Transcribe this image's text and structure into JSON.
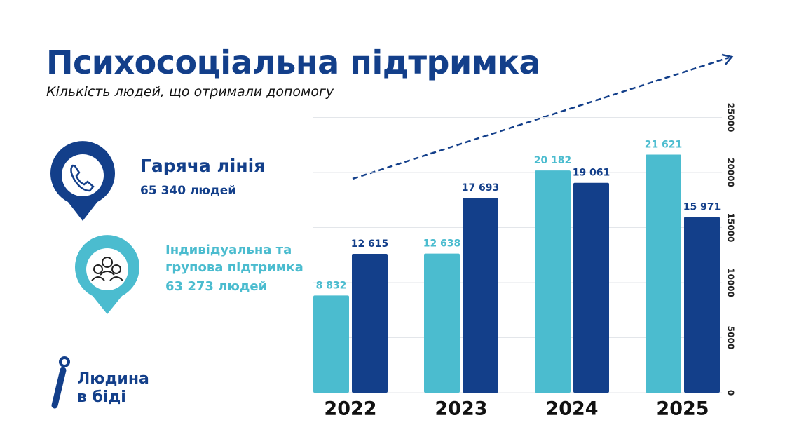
{
  "title": "Психосоціальна підтримка",
  "subtitle": "Кількість людей, що отримали допомогу",
  "hotline_count": "65 340 людей",
  "support_count": "63 273 людей",
  "logo": {
    "line1": "Людина",
    "line2": "в біді"
  },
  "chart_data": {
    "type": "bar",
    "categories": [
      "2022",
      "2023",
      "2024",
      "2025"
    ],
    "series": [
      {
        "name": "Індивідуальна та групова підтримка",
        "color": "#4bbccf",
        "values": [
          8832,
          12638,
          20182,
          21621
        ],
        "value_labels": [
          "8 832",
          "12 638",
          "20 182",
          "21 621"
        ]
      },
      {
        "name": "Гаряча лінія",
        "color": "#133f8a",
        "values": [
          12615,
          17693,
          19061,
          15971
        ],
        "value_labels": [
          "12 615",
          "17 693",
          "19 061",
          "15 971"
        ]
      }
    ],
    "ylim": [
      0,
      25000
    ],
    "yticks": [
      0,
      5000,
      10000,
      15000,
      20000,
      25000
    ],
    "grid": true
  }
}
